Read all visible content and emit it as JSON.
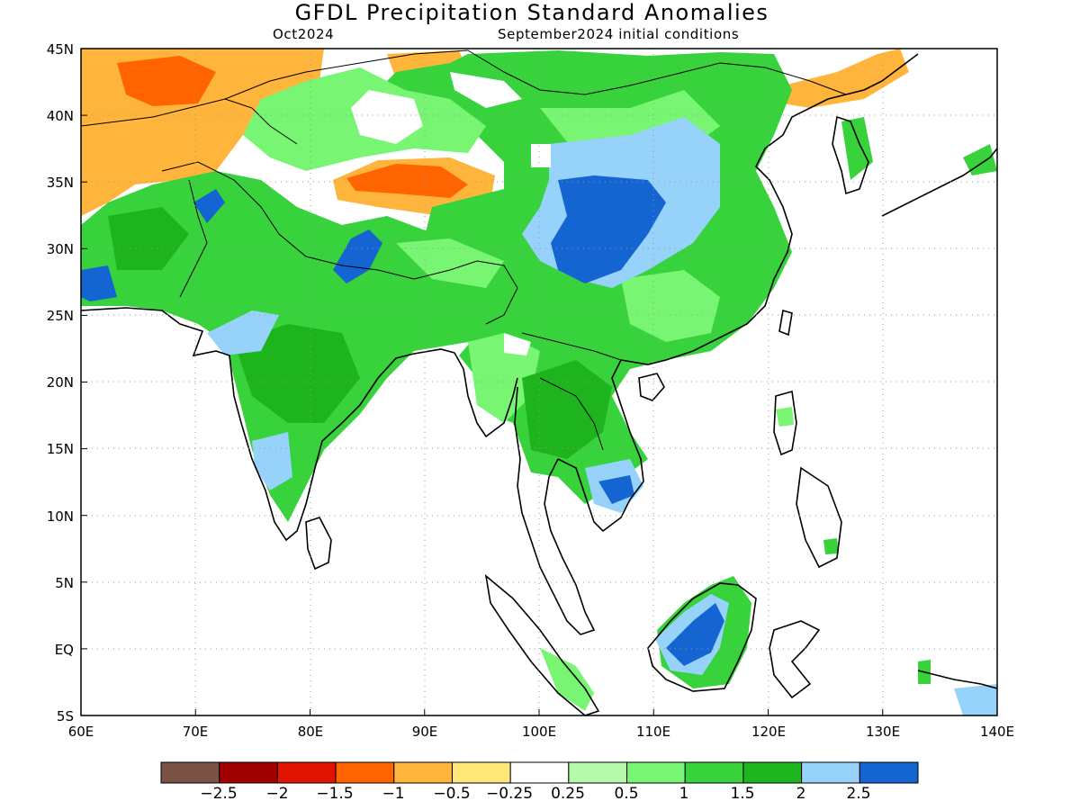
{
  "title": "GFDL Precipitation Standard Anomalies",
  "subtitle_left": "Oct2024",
  "subtitle_right": "September2024 initial conditions",
  "map": {
    "lon_range": [
      60,
      140
    ],
    "lat_range": [
      -5,
      45
    ],
    "x_ticks": [
      "60E",
      "70E",
      "80E",
      "90E",
      "100E",
      "110E",
      "120E",
      "130E",
      "140E"
    ],
    "y_ticks": [
      "45N",
      "40N",
      "35N",
      "30N",
      "25N",
      "20N",
      "15N",
      "10N",
      "5N",
      "EQ",
      "5S"
    ],
    "grid": "dotted"
  },
  "colorbar": {
    "colors": [
      "#7a5246",
      "#a00000",
      "#e01400",
      "#ff6400",
      "#ffb43c",
      "#ffe678",
      "#ffffff",
      "#b4faaa",
      "#78f573",
      "#37d23c",
      "#1eb41e",
      "#96d2fa",
      "#1464d2"
    ],
    "labels": [
      "−2.5",
      "−2",
      "−1.5",
      "−1",
      "−0.5",
      "−0.25",
      "0.25",
      "0.5",
      "1",
      "1.5",
      "2",
      "2.5"
    ]
  },
  "anomaly_regions": [
    {
      "name": "central-asia-dry",
      "level": "-0.5",
      "color": "#ffb43c"
    },
    {
      "name": "central-asia-dry-core",
      "level": "-1",
      "color": "#ff6400"
    },
    {
      "name": "tibet-dry",
      "level": "-0.5",
      "color": "#ffb43c"
    },
    {
      "name": "tibet-dry-core",
      "level": "-1",
      "color": "#ff6400"
    },
    {
      "name": "mongolia-dry",
      "level": "-0.5",
      "color": "#ffb43c"
    },
    {
      "name": "northeast-china-dry",
      "level": "-0.5",
      "color": "#ffb43c"
    },
    {
      "name": "south-asia-wet",
      "level": "1.5",
      "color": "#37d23c"
    },
    {
      "name": "china-wet",
      "level": "1.5",
      "color": "#37d23c"
    },
    {
      "name": "sichuan-wet-core",
      "level": "2.5",
      "color": "#1464d2"
    },
    {
      "name": "borneo-wet-core",
      "level": "2.5",
      "color": "#1464d2"
    }
  ]
}
